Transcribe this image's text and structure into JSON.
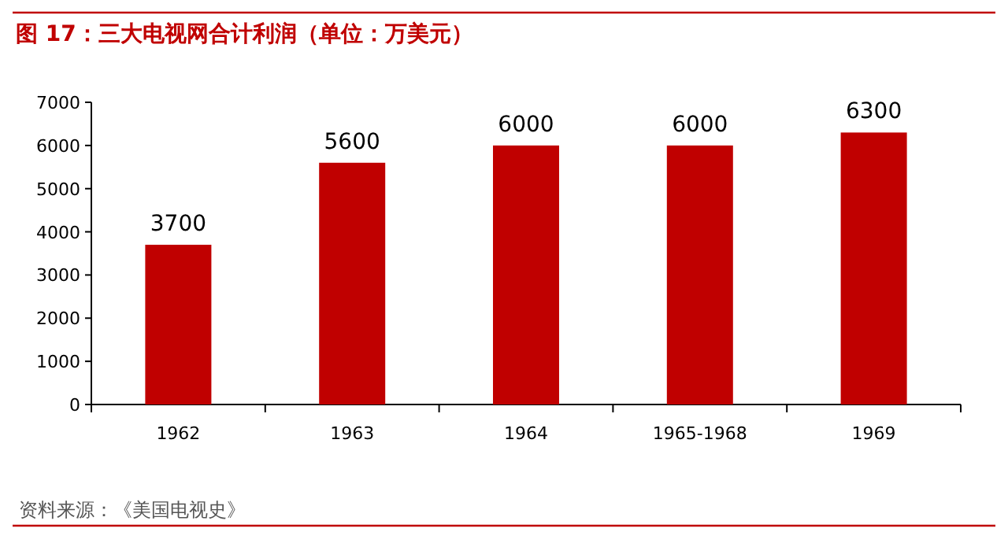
{
  "chart_data": {
    "type": "bar",
    "title": "图 17：三大电视网合计利润（单位：万美元）",
    "categories": [
      "1962",
      "1963",
      "1964",
      "1965-1968",
      "1969"
    ],
    "values": [
      3700,
      5600,
      6000,
      6000,
      6300
    ],
    "color": "#c00000",
    "ylim": [
      0,
      7000
    ],
    "yticks": [
      0,
      1000,
      2000,
      3000,
      4000,
      5000,
      6000,
      7000
    ],
    "data_labels": true,
    "annotations": [
      "资料来源：《美国电视史》"
    ]
  }
}
